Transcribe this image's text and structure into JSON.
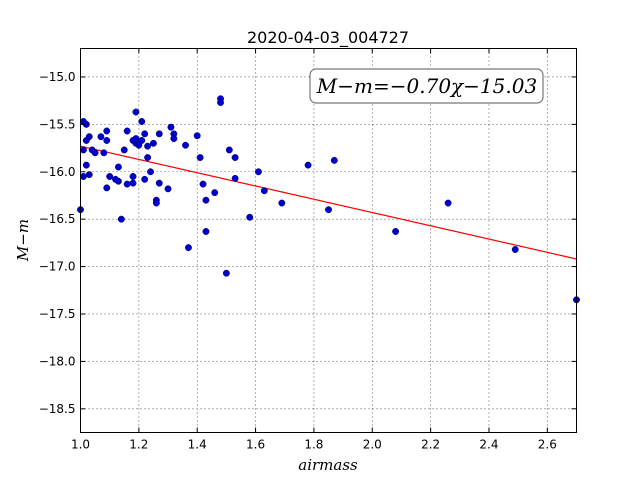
{
  "chart_data": {
    "type": "scatter",
    "title": "2020-04-03_004727",
    "xlabel": "airmass",
    "ylabel": "M−m",
    "xlim": [
      1.0,
      2.7
    ],
    "ylim": [
      -18.75,
      -14.7
    ],
    "xticks": [
      "1.0",
      "1.2",
      "1.4",
      "1.6",
      "1.8",
      "2.0",
      "2.2",
      "2.4",
      "2.6"
    ],
    "yticks": [
      "−15.0",
      "−15.5",
      "−16.0",
      "−16.5",
      "−17.0",
      "−17.5",
      "−18.0",
      "−18.5"
    ],
    "xtick_values": [
      1.0,
      1.2,
      1.4,
      1.6,
      1.8,
      2.0,
      2.2,
      2.4,
      2.6
    ],
    "ytick_values": [
      -15.0,
      -15.5,
      -16.0,
      -16.5,
      -17.0,
      -17.5,
      -18.0,
      -18.5
    ],
    "grid": true,
    "annotation": "M−m=−0.70χ−15.03",
    "fit": {
      "slope": -0.7,
      "intercept": -15.03,
      "color": "#ff0000"
    },
    "point_color": "#0000cc",
    "points": [
      [
        1.0,
        -16.4
      ],
      [
        1.01,
        -16.05
      ],
      [
        1.01,
        -15.77
      ],
      [
        1.01,
        -15.47
      ],
      [
        1.02,
        -15.93
      ],
      [
        1.02,
        -15.67
      ],
      [
        1.02,
        -15.5
      ],
      [
        1.03,
        -15.63
      ],
      [
        1.03,
        -16.03
      ],
      [
        1.04,
        -15.77
      ],
      [
        1.05,
        -15.8
      ],
      [
        1.07,
        -15.63
      ],
      [
        1.08,
        -15.8
      ],
      [
        1.09,
        -15.57
      ],
      [
        1.09,
        -15.67
      ],
      [
        1.09,
        -16.17
      ],
      [
        1.1,
        -16.05
      ],
      [
        1.12,
        -16.08
      ],
      [
        1.13,
        -16.1
      ],
      [
        1.13,
        -15.95
      ],
      [
        1.14,
        -16.5
      ],
      [
        1.15,
        -15.77
      ],
      [
        1.16,
        -16.13
      ],
      [
        1.16,
        -15.57
      ],
      [
        1.18,
        -16.05
      ],
      [
        1.18,
        -16.12
      ],
      [
        1.18,
        -15.67
      ],
      [
        1.19,
        -15.7
      ],
      [
        1.19,
        -15.37
      ],
      [
        1.19,
        -15.65
      ],
      [
        1.2,
        -15.72
      ],
      [
        1.21,
        -15.67
      ],
      [
        1.21,
        -15.47
      ],
      [
        1.22,
        -15.6
      ],
      [
        1.22,
        -16.08
      ],
      [
        1.23,
        -15.85
      ],
      [
        1.23,
        -15.73
      ],
      [
        1.24,
        -16.0
      ],
      [
        1.25,
        -15.7
      ],
      [
        1.26,
        -16.3
      ],
      [
        1.26,
        -16.33
      ],
      [
        1.27,
        -16.12
      ],
      [
        1.27,
        -15.6
      ],
      [
        1.3,
        -16.18
      ],
      [
        1.31,
        -15.53
      ],
      [
        1.32,
        -15.6
      ],
      [
        1.32,
        -15.65
      ],
      [
        1.36,
        -15.72
      ],
      [
        1.37,
        -16.8
      ],
      [
        1.4,
        -15.62
      ],
      [
        1.41,
        -15.85
      ],
      [
        1.42,
        -16.13
      ],
      [
        1.43,
        -16.3
      ],
      [
        1.43,
        -16.63
      ],
      [
        1.46,
        -16.22
      ],
      [
        1.48,
        -15.23
      ],
      [
        1.48,
        -15.27
      ],
      [
        1.5,
        -17.07
      ],
      [
        1.51,
        -15.77
      ],
      [
        1.53,
        -16.07
      ],
      [
        1.53,
        -15.85
      ],
      [
        1.58,
        -16.48
      ],
      [
        1.61,
        -16.0
      ],
      [
        1.63,
        -16.2
      ],
      [
        1.69,
        -16.33
      ],
      [
        1.78,
        -15.93
      ],
      [
        1.85,
        -16.4
      ],
      [
        1.87,
        -15.88
      ],
      [
        2.08,
        -16.63
      ],
      [
        2.26,
        -16.33
      ],
      [
        2.49,
        -16.82
      ],
      [
        2.7,
        -17.35
      ]
    ]
  }
}
